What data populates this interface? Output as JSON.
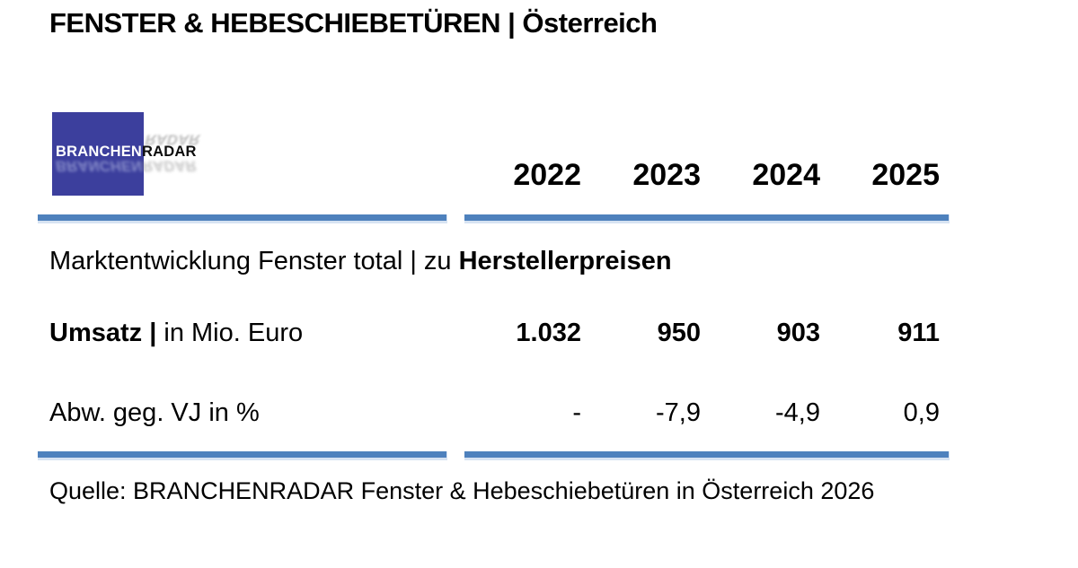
{
  "title": "FENSTER & HEBESCHIEBETÜREN | Österreich",
  "logo": {
    "part1": "BRANCHEN",
    "part2": "RADAR"
  },
  "table": {
    "years": [
      "2022",
      "2023",
      "2024",
      "2025"
    ],
    "section": {
      "regular": "Marktentwicklung Fenster total | zu ",
      "bold": "Herstellerpreisen"
    },
    "rows": [
      {
        "label_bold": "Umsatz | ",
        "label_regular": "in Mio. Euro",
        "values": [
          "1.032",
          "950",
          "903",
          "911"
        ]
      },
      {
        "label_bold": "",
        "label_regular": "Abw. geg. VJ in %",
        "values": [
          "-",
          "-7,9",
          "-4,9",
          "0,9"
        ]
      }
    ]
  },
  "source": "Quelle: BRANCHENRADAR Fenster & Hebeschiebetüren in Österreich 2026",
  "colors": {
    "bar_blue": "#4e81bd",
    "bar_edge": "#d7e3f2",
    "logo_blue": "#3c3f9d",
    "text": "#000000"
  },
  "chart_data": {
    "type": "table",
    "title": "FENSTER & HEBESCHIEBETÜREN | Österreich",
    "section": "Marktentwicklung Fenster total | zu Herstellerpreisen",
    "columns": [
      "2022",
      "2023",
      "2024",
      "2025"
    ],
    "rows": [
      {
        "label": "Umsatz | in Mio. Euro",
        "values": [
          1032,
          950,
          903,
          911
        ]
      },
      {
        "label": "Abw. geg. VJ in %",
        "values": [
          null,
          -7.9,
          -4.9,
          0.9
        ]
      }
    ],
    "value_unit": "Mio. Euro",
    "source": "Quelle: BRANCHENRADAR Fenster & Hebeschiebetüren in Österreich 2026"
  }
}
